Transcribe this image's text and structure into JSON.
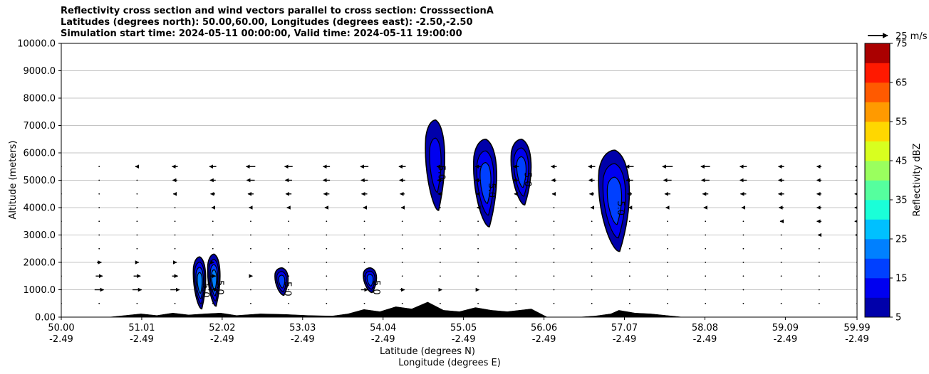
{
  "header": {
    "title_line1": "Reflectivity cross section and wind vectors parallel to cross section: CrosssectionA",
    "title_line2": "Latitudes (degrees north): 50.00,60.00, Longitudes (degrees east): -2.50,-2.50",
    "title_line3": "Simulation start time: 2024-05-11 00:00:00, Valid time: 2024-05-11 19:00:00"
  },
  "chart_data": {
    "type": "contourf",
    "title": "Reflectivity cross section and wind vectors parallel to cross section: CrosssectionA",
    "xlabel_lat": "Latitude (degrees N)",
    "xlabel_lon": "Longitude (degrees E)",
    "ylabel": "Altitude (meters)",
    "xlim": [
      50.0,
      59.99
    ],
    "ylim": [
      0,
      10000
    ],
    "grid": "horizontal",
    "x_ticks": [
      {
        "lat": "50.00",
        "lon": "-2.49",
        "value": 50.0
      },
      {
        "lat": "51.01",
        "lon": "-2.49",
        "value": 51.01
      },
      {
        "lat": "52.02",
        "lon": "-2.49",
        "value": 52.02
      },
      {
        "lat": "53.03",
        "lon": "-2.49",
        "value": 53.03
      },
      {
        "lat": "54.04",
        "lon": "-2.49",
        "value": 54.04
      },
      {
        "lat": "55.05",
        "lon": "-2.49",
        "value": 55.05
      },
      {
        "lat": "56.06",
        "lon": "-2.49",
        "value": 56.06
      },
      {
        "lat": "57.07",
        "lon": "-2.49",
        "value": 57.07
      },
      {
        "lat": "58.08",
        "lon": "-2.49",
        "value": 58.08
      },
      {
        "lat": "59.09",
        "lon": "-2.49",
        "value": 59.09
      },
      {
        "lat": "59.99",
        "lon": "-2.49",
        "value": 59.99
      }
    ],
    "y_ticks": [
      {
        "label": "0.00",
        "value": 0
      },
      {
        "label": "1000.0",
        "value": 1000
      },
      {
        "label": "2000.0",
        "value": 2000
      },
      {
        "label": "3000.0",
        "value": 3000
      },
      {
        "label": "4000.0",
        "value": 4000
      },
      {
        "label": "5000.0",
        "value": 5000
      },
      {
        "label": "6000.0",
        "value": 6000
      },
      {
        "label": "7000.0",
        "value": 7000
      },
      {
        "label": "8000.0",
        "value": 8000
      },
      {
        "label": "9000.0",
        "value": 9000
      },
      {
        "label": "10000.0",
        "value": 10000
      }
    ],
    "colorbar": {
      "label": "Reflectivity dBZ",
      "range": [
        5,
        75
      ],
      "step": 5,
      "tick_labels": [
        "5",
        "15",
        "25",
        "35",
        "45",
        "55",
        "65",
        "75"
      ],
      "colors": [
        "#0000aa",
        "#0000f0",
        "#0040ff",
        "#0080ff",
        "#00c0ff",
        "#1affd8",
        "#55ff9e",
        "#9aff5e",
        "#d8ff1f",
        "#ffd700",
        "#ff9a00",
        "#ff5a00",
        "#ff1900",
        "#aa0000"
      ]
    },
    "wind_key": {
      "label": "25 m/s",
      "speed": 25
    },
    "contour_labels": [
      "5.0",
      "10.0",
      "15.0",
      "20.0"
    ],
    "cells": [
      {
        "lat": 51.74,
        "bottom": 300,
        "top": 2200,
        "max_dbz": 20,
        "width": 0.16
      },
      {
        "lat": 51.92,
        "bottom": 400,
        "top": 2300,
        "max_dbz": 20,
        "width": 0.16
      },
      {
        "lat": 52.77,
        "bottom": 800,
        "top": 1800,
        "max_dbz": 15,
        "width": 0.17
      },
      {
        "lat": 53.88,
        "bottom": 900,
        "top": 1800,
        "max_dbz": 15,
        "width": 0.17
      },
      {
        "lat": 54.7,
        "bottom": 3900,
        "top": 7200,
        "max_dbz": 10,
        "width": 0.25
      },
      {
        "lat": 55.33,
        "bottom": 3300,
        "top": 6500,
        "max_dbz": 15,
        "width": 0.3
      },
      {
        "lat": 55.78,
        "bottom": 4100,
        "top": 6500,
        "max_dbz": 15,
        "width": 0.26
      },
      {
        "lat": 56.95,
        "bottom": 2400,
        "top": 6100,
        "max_dbz": 15,
        "width": 0.4
      }
    ],
    "terrain": [
      [
        50.0,
        0
      ],
      [
        50.6,
        0
      ],
      [
        50.8,
        60
      ],
      [
        51.0,
        120
      ],
      [
        51.2,
        60
      ],
      [
        51.4,
        150
      ],
      [
        51.6,
        80
      ],
      [
        51.8,
        120
      ],
      [
        52.0,
        150
      ],
      [
        52.2,
        60
      ],
      [
        52.5,
        120
      ],
      [
        52.8,
        100
      ],
      [
        53.1,
        60
      ],
      [
        53.4,
        40
      ],
      [
        53.6,
        120
      ],
      [
        53.8,
        280
      ],
      [
        54.0,
        200
      ],
      [
        54.2,
        380
      ],
      [
        54.4,
        300
      ],
      [
        54.6,
        550
      ],
      [
        54.8,
        250
      ],
      [
        55.0,
        200
      ],
      [
        55.2,
        350
      ],
      [
        55.4,
        250
      ],
      [
        55.6,
        200
      ],
      [
        55.9,
        300
      ],
      [
        56.1,
        0
      ],
      [
        56.5,
        0
      ],
      [
        56.7,
        40
      ],
      [
        56.9,
        120
      ],
      [
        57.0,
        250
      ],
      [
        57.2,
        150
      ],
      [
        57.4,
        120
      ],
      [
        57.6,
        60
      ],
      [
        57.8,
        0
      ],
      [
        59.99,
        0
      ]
    ],
    "wind_u": [
      [
        0,
        0,
        0,
        0,
        0,
        0,
        0,
        0,
        0,
        0,
        0,
        0,
        0,
        0,
        0,
        0,
        0,
        0,
        0,
        0,
        0,
        0
      ],
      [
        0,
        8,
        8,
        8,
        8,
        0,
        0,
        0,
        6,
        4,
        3,
        2,
        0,
        0,
        0,
        0,
        0,
        0,
        0,
        0,
        0,
        0
      ],
      [
        0,
        6,
        6,
        5,
        5,
        3,
        0,
        0,
        0,
        0,
        0,
        0,
        0,
        0,
        0,
        0,
        0,
        0,
        0,
        0,
        0,
        0
      ],
      [
        0,
        4,
        3,
        3,
        2,
        0,
        0,
        0,
        0,
        0,
        0,
        0,
        0,
        0,
        0,
        0,
        0,
        0,
        0,
        0,
        0,
        0
      ],
      [
        0,
        0,
        0,
        0,
        0,
        0,
        0,
        0,
        0,
        0,
        0,
        0,
        0,
        0,
        0,
        0,
        0,
        0,
        0,
        0,
        0,
        0
      ],
      [
        0,
        0,
        0,
        0,
        0,
        0,
        0,
        0,
        0,
        0,
        0,
        0,
        0,
        0,
        0,
        0,
        0,
        0,
        0,
        0,
        -2,
        -3
      ],
      [
        0,
        0,
        0,
        0,
        0,
        0,
        0,
        0,
        0,
        0,
        0,
        0,
        0,
        0,
        0,
        0,
        0,
        0,
        0,
        -2,
        -4,
        -4
      ],
      [
        0,
        0,
        0,
        0,
        -2,
        -3,
        -3,
        -3,
        -2,
        -2,
        0,
        -2,
        0,
        0,
        -2,
        -2,
        -3,
        -3,
        -3,
        -4,
        -4,
        -4
      ],
      [
        0,
        0,
        0,
        -3,
        -4,
        -5,
        -5,
        -5,
        -5,
        -4,
        -4,
        -3,
        -3,
        -3,
        -4,
        -4,
        -5,
        -5,
        -5,
        -5,
        -4,
        -4
      ],
      [
        0,
        0,
        0,
        -4,
        -5,
        -7,
        -6,
        -6,
        -6,
        -5,
        -5,
        -5,
        -5,
        -4,
        -5,
        -6,
        -7,
        -7,
        -6,
        -5,
        -4,
        -3
      ],
      [
        0,
        0,
        -3,
        -5,
        -6,
        -8,
        -7,
        -6,
        -7,
        -6,
        -6,
        -5,
        -5,
        -5,
        -6,
        -7,
        -9,
        -8,
        -6,
        -5,
        -4,
        -3
      ]
    ]
  }
}
